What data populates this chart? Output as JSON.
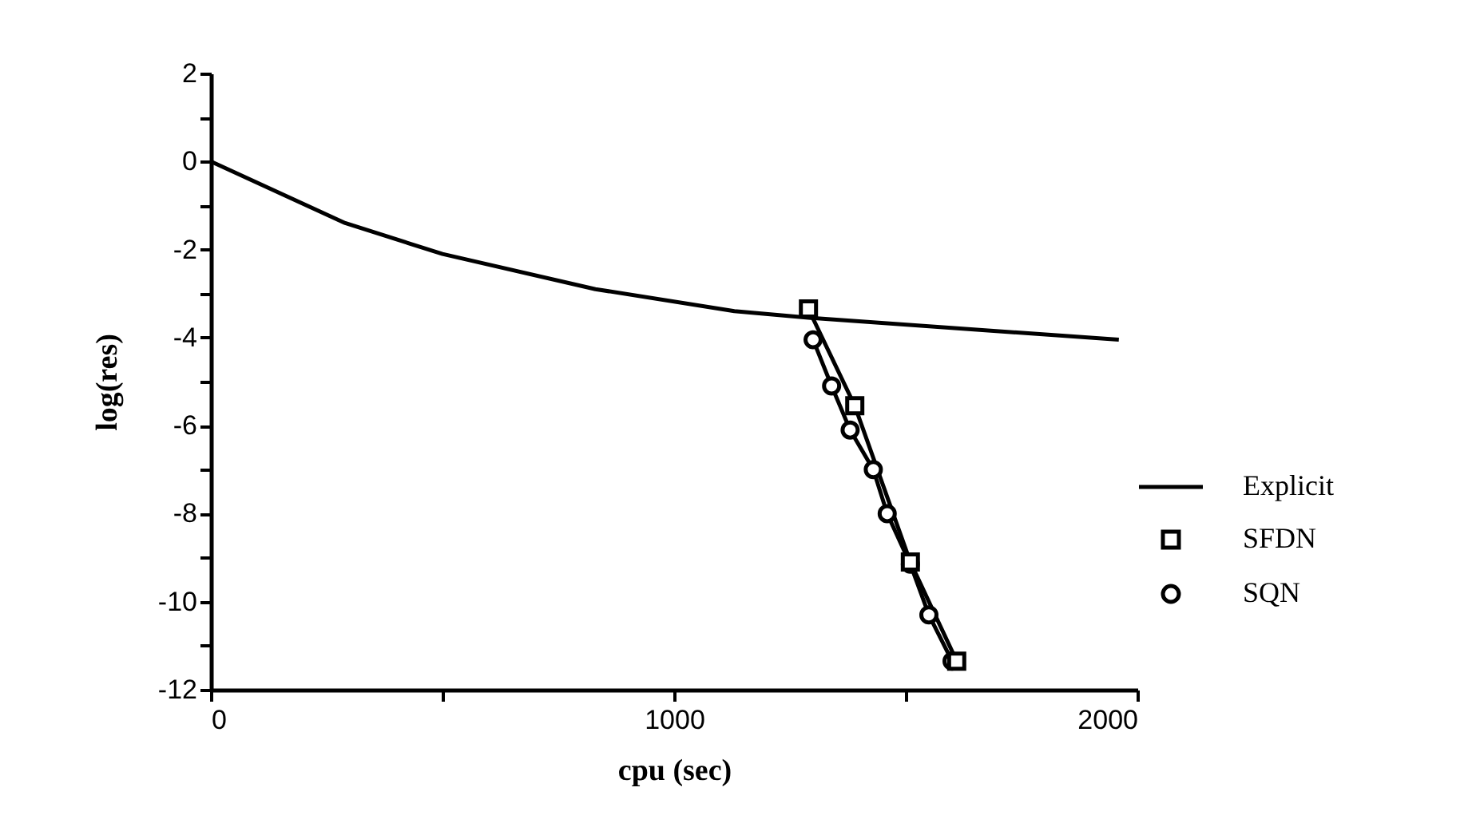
{
  "chart_data": {
    "type": "line",
    "xlabel": "cpu  (sec)",
    "ylabel": "log(res)",
    "xlim": [
      0,
      2000
    ],
    "xticks": [
      0,
      {
        "value": 500,
        "label": null
      },
      1000,
      {
        "value": 1500,
        "label": null
      },
      2000
    ],
    "ylim": [
      -12,
      2
    ],
    "yticks": [
      -12,
      {
        "value": -11,
        "label": null
      },
      -10,
      {
        "value": -9,
        "label": null
      },
      -8,
      {
        "value": -7,
        "label": null
      },
      -6,
      {
        "value": -5,
        "label": null
      },
      -4,
      {
        "value": -3,
        "label": null
      },
      -2,
      {
        "value": -1,
        "label": null
      },
      0,
      {
        "value": 1,
        "label": null
      },
      2
    ],
    "grid": false,
    "legend": "right",
    "line_style": "solid",
    "series": [
      {
        "name": "Explicit",
        "color": "#000000",
        "marker": "none",
        "x": [
          0,
          290,
          500,
          830,
          1130,
          1290,
          1960
        ],
        "values": [
          0,
          -1.4,
          -2.1,
          -2.9,
          -3.4,
          -3.55,
          -4.05
        ]
      },
      {
        "name": "SFDN",
        "color": "#000000",
        "marker": "square",
        "x": [
          1290,
          1390,
          1510,
          1610
        ],
        "values": [
          -3.35,
          -5.55,
          -9.1,
          -11.35
        ]
      },
      {
        "name": "SQN",
        "color": "#000000",
        "marker": "circle",
        "x": [
          1300,
          1340,
          1380,
          1430,
          1460,
          1510,
          1550,
          1600
        ],
        "values": [
          -4.05,
          -5.1,
          -6.1,
          -7.0,
          -8.0,
          -9.15,
          -10.3,
          -11.35
        ]
      }
    ]
  }
}
